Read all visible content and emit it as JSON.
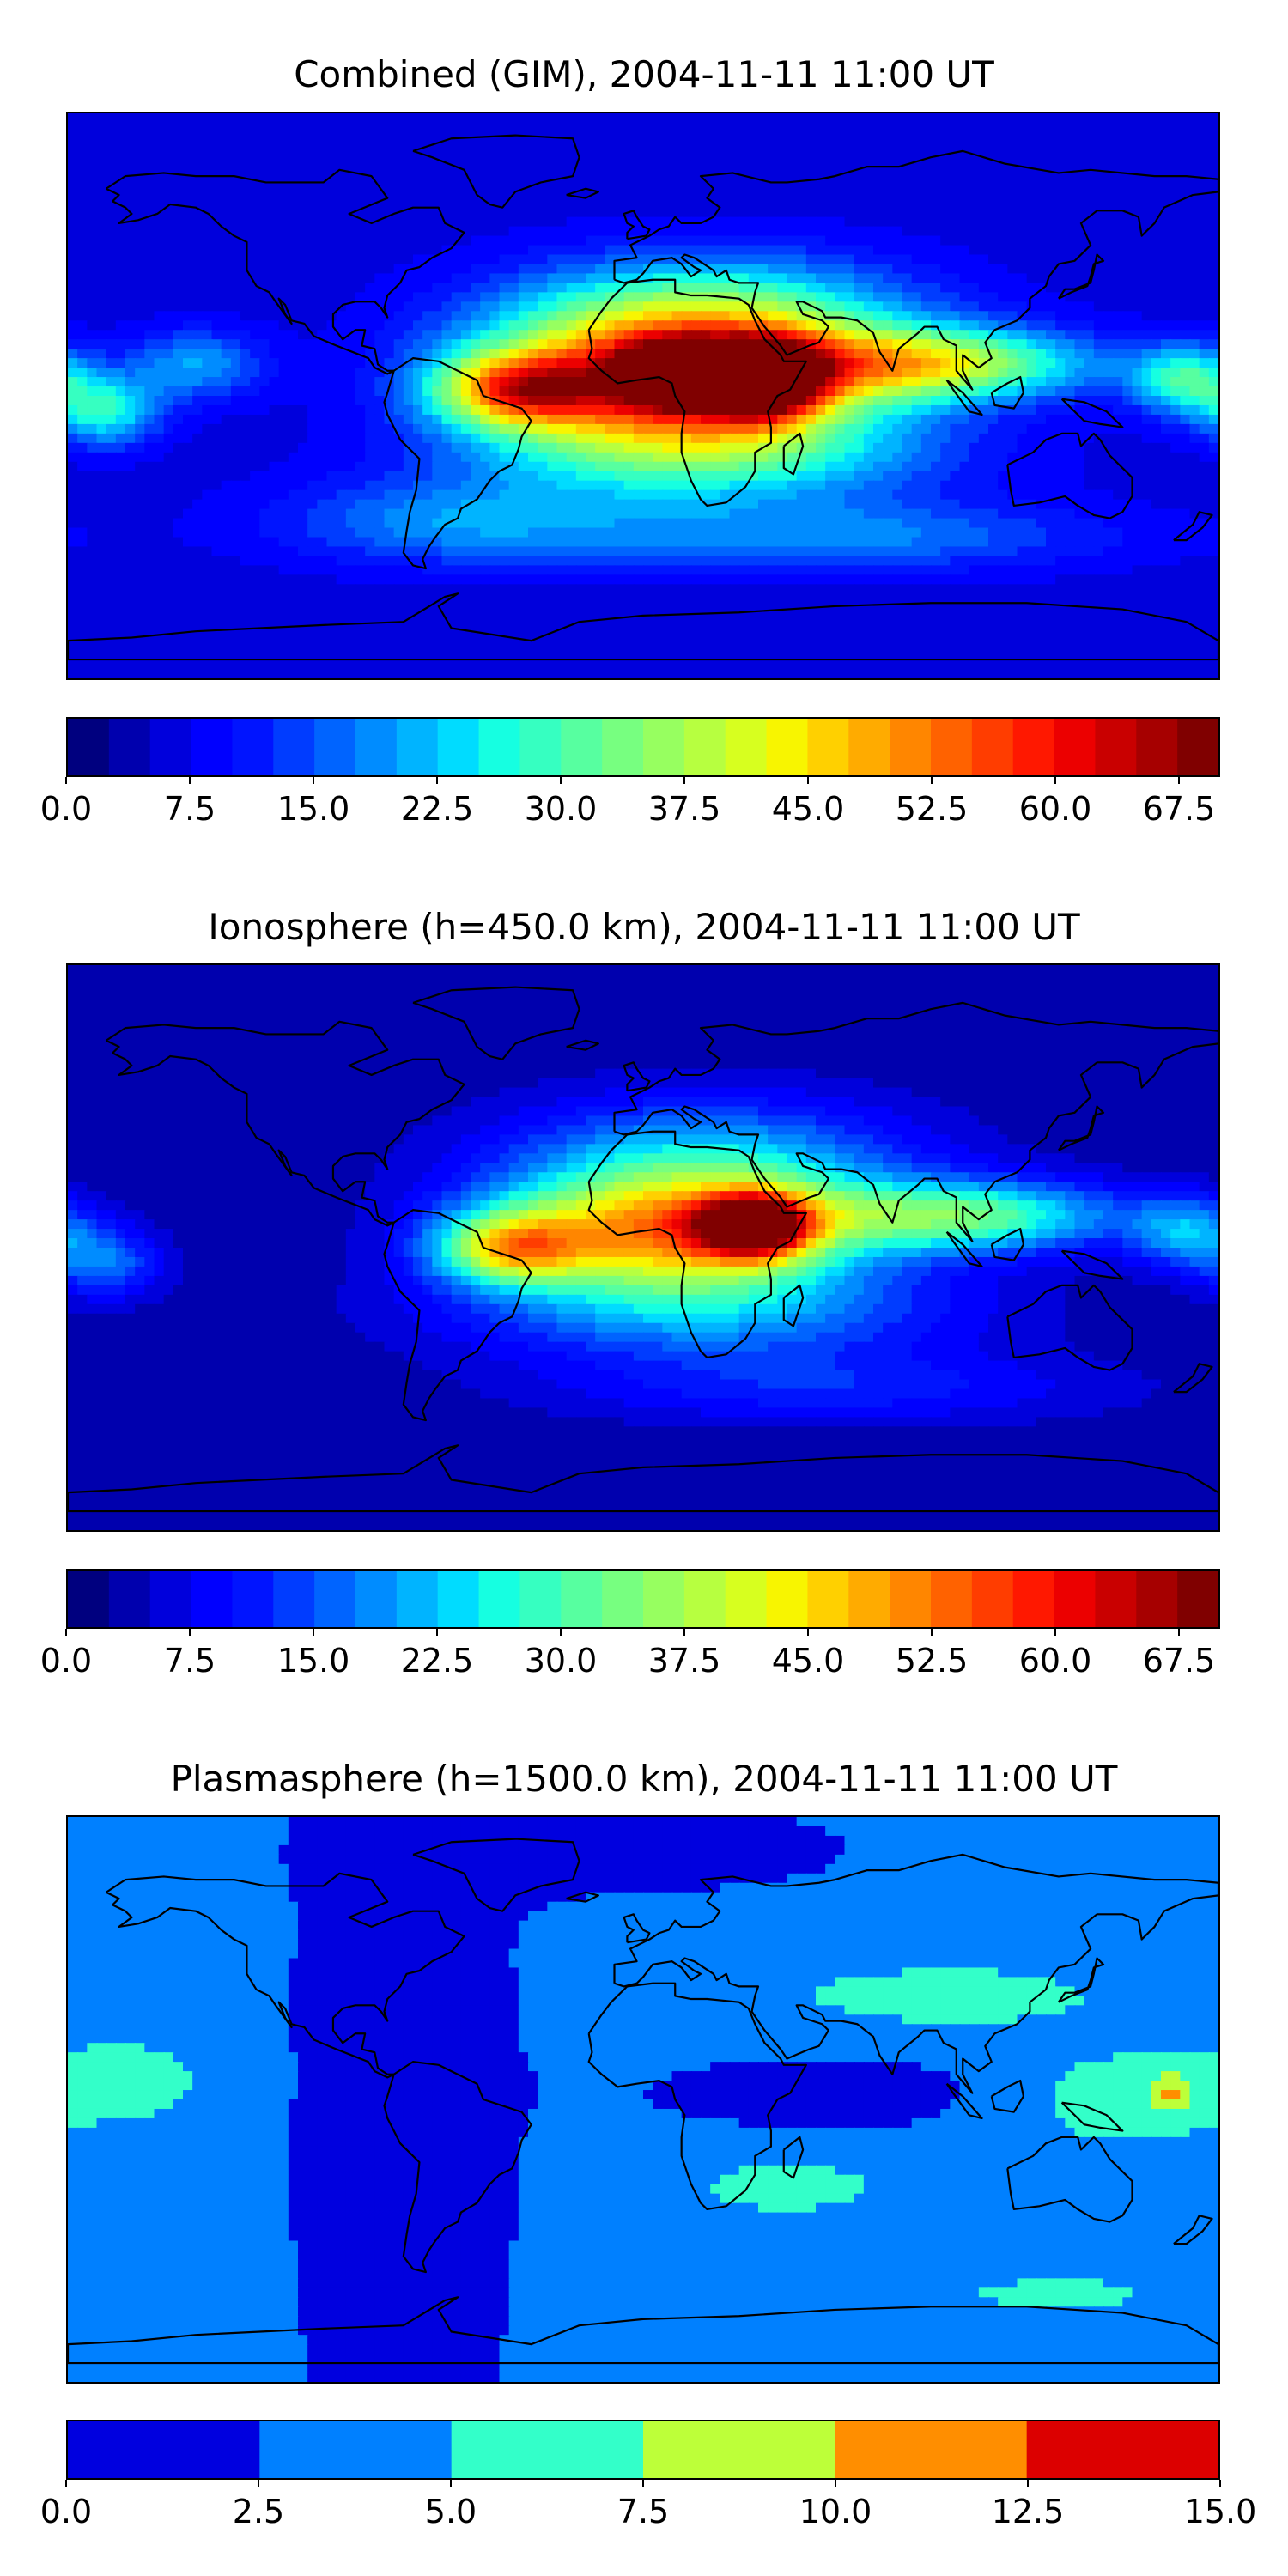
{
  "chart_data": [
    {
      "type": "heatmap",
      "title": "Combined (GIM), 2004-11-11 11:00 UT",
      "colorbar": {
        "range": [
          0.0,
          70.0
        ],
        "levels": [
          0.0,
          2.5,
          5.0,
          7.5,
          10.0,
          12.5,
          15.0,
          17.5,
          20.0,
          22.5,
          25.0,
          27.5,
          30.0,
          32.5,
          35.0,
          37.5,
          40.0,
          42.5,
          45.0,
          47.5,
          50.0,
          52.5,
          55.0,
          57.5,
          60.0,
          62.5,
          65.0,
          67.5,
          70.0
        ],
        "tick_labels": [
          "0.0",
          "7.5",
          "15.0",
          "22.5",
          "30.0",
          "37.5",
          "45.0",
          "52.5",
          "60.0",
          "67.5"
        ],
        "tick_values": [
          0.0,
          7.5,
          15.0,
          22.5,
          30.0,
          37.5,
          45.0,
          52.5,
          60.0,
          67.5
        ]
      },
      "field": {
        "background": 6.0,
        "features": [
          {
            "lon": 8,
            "lat": 5,
            "peak": 48,
            "spread_lon": 40,
            "spread_lat": 14
          },
          {
            "lon": 38,
            "lat": 5,
            "peak": 50,
            "spread_lon": 12,
            "spread_lat": 8
          },
          {
            "lon": 10,
            "lat": 7,
            "peak": 52,
            "spread_lon": 10,
            "spread_lat": 6
          },
          {
            "lon": -40,
            "lat": 2,
            "peak": 32,
            "spread_lon": 18,
            "spread_lat": 8
          },
          {
            "lon": 90,
            "lat": 10,
            "peak": 32,
            "spread_lon": 35,
            "spread_lat": 8
          },
          {
            "lon": 20,
            "lat": 25,
            "peak": 25,
            "spread_lon": 45,
            "spread_lat": 14
          },
          {
            "lon": 20,
            "lat": -18,
            "peak": 22,
            "spread_lon": 50,
            "spread_lat": 12
          },
          {
            "lon": -168,
            "lat": -5,
            "peak": 20,
            "spread_lon": 12,
            "spread_lat": 8
          },
          {
            "lon": 170,
            "lat": 5,
            "peak": 22,
            "spread_lon": 12,
            "spread_lat": 8
          },
          {
            "lon": -140,
            "lat": 10,
            "peak": 14,
            "spread_lon": 15,
            "spread_lat": 8
          },
          {
            "lon": 60,
            "lat": -45,
            "peak": 12,
            "spread_lon": 60,
            "spread_lat": 8
          },
          {
            "lon": -60,
            "lat": -40,
            "peak": 12,
            "spread_lon": 40,
            "spread_lat": 10
          }
        ]
      }
    },
    {
      "type": "heatmap",
      "title": "Ionosphere  (h=450.0 km), 2004-11-11 11:00 UT",
      "colorbar": {
        "range": [
          0.0,
          70.0
        ],
        "levels": [
          0.0,
          2.5,
          5.0,
          7.5,
          10.0,
          12.5,
          15.0,
          17.5,
          20.0,
          22.5,
          25.0,
          27.5,
          30.0,
          32.5,
          35.0,
          37.5,
          40.0,
          42.5,
          45.0,
          47.5,
          50.0,
          52.5,
          55.0,
          57.5,
          60.0,
          62.5,
          65.0,
          67.5,
          70.0
        ],
        "tick_labels": [
          "0.0",
          "7.5",
          "15.0",
          "22.5",
          "30.0",
          "37.5",
          "45.0",
          "52.5",
          "60.0",
          "67.5"
        ],
        "tick_values": [
          0.0,
          7.5,
          15.0,
          22.5,
          30.0,
          37.5,
          45.0,
          52.5,
          60.0,
          67.5
        ]
      },
      "field": {
        "background": 3.0,
        "features": [
          {
            "lon": 8,
            "lat": 5,
            "peak": 44,
            "spread_lon": 38,
            "spread_lat": 13
          },
          {
            "lon": 35,
            "lat": 7,
            "peak": 46,
            "spread_lon": 12,
            "spread_lat": 7
          },
          {
            "lon": -42,
            "lat": 0,
            "peak": 30,
            "spread_lon": 16,
            "spread_lat": 8
          },
          {
            "lon": 100,
            "lat": 10,
            "peak": 28,
            "spread_lon": 35,
            "spread_lat": 8
          },
          {
            "lon": 20,
            "lat": 28,
            "peak": 18,
            "spread_lon": 45,
            "spread_lat": 14
          },
          {
            "lon": 20,
            "lat": -20,
            "peak": 16,
            "spread_lon": 55,
            "spread_lat": 12
          },
          {
            "lon": -168,
            "lat": -5,
            "peak": 14,
            "spread_lon": 12,
            "spread_lat": 8
          },
          {
            "lon": 170,
            "lat": 5,
            "peak": 16,
            "spread_lon": 12,
            "spread_lat": 8
          },
          {
            "lon": 60,
            "lat": -45,
            "peak": 8,
            "spread_lon": 60,
            "spread_lat": 8
          }
        ]
      }
    },
    {
      "type": "heatmap",
      "title": "Plasmasphere (h=1500.0 km), 2004-11-11 11:00 UT",
      "colorbar": {
        "range": [
          0.0,
          15.0
        ],
        "levels": [
          0.0,
          2.5,
          5.0,
          7.5,
          10.0,
          12.5,
          15.0
        ],
        "tick_labels": [
          "0.0",
          "2.5",
          "5.0",
          "7.5",
          "10.0",
          "12.5",
          "15.0"
        ],
        "tick_values": [
          0.0,
          2.5,
          5.0,
          7.5,
          10.0,
          12.5,
          15.0
        ]
      },
      "field": {
        "background": 3.2,
        "features": [
          {
            "lon": -75,
            "lat": 0,
            "peak": -1.6,
            "spread_lon": 28,
            "spread_lat": 120
          },
          {
            "lon": -5,
            "lat": 80,
            "peak": -1.8,
            "spread_lon": 50,
            "spread_lat": 10
          },
          {
            "lon": 60,
            "lat": 2,
            "peak": -1.6,
            "spread_lon": 45,
            "spread_lat": 9
          },
          {
            "lon": -160,
            "lat": 6,
            "peak": 3.0,
            "spread_lon": 18,
            "spread_lat": 10
          },
          {
            "lon": 95,
            "lat": 33,
            "peak": 3.0,
            "spread_lon": 40,
            "spread_lat": 8
          },
          {
            "lon": 150,
            "lat": 0,
            "peak": 3.4,
            "spread_lon": 25,
            "spread_lat": 12
          },
          {
            "lon": 165,
            "lat": 2,
            "peak": 4.6,
            "spread_lon": 4,
            "spread_lat": 4
          },
          {
            "lon": 45,
            "lat": -28,
            "peak": 3.0,
            "spread_lon": 24,
            "spread_lat": 7
          },
          {
            "lon": 130,
            "lat": -62,
            "peak": 2.6,
            "spread_lon": 28,
            "spread_lat": 5
          },
          {
            "lon": 150,
            "lat": 60,
            "peak": 1.2,
            "spread_lon": 25,
            "spread_lat": 8
          }
        ]
      }
    }
  ],
  "colors": {
    "palette_fine": [
      "#00007f",
      "#0000ae",
      "#0000dc",
      "#0000ff",
      "#0014ff",
      "#003cff",
      "#0064ff",
      "#008cff",
      "#00b4ff",
      "#00dcff",
      "#16ffe1",
      "#36ffc1",
      "#57ffa0",
      "#77ff80",
      "#97ff60",
      "#b7ff40",
      "#d7ff1f",
      "#f8f500",
      "#ffd000",
      "#ffab00",
      "#ff8600",
      "#ff6200",
      "#ff3d00",
      "#ff1800",
      "#ec0000",
      "#c90000",
      "#a60000",
      "#800000"
    ],
    "palette_coarse": [
      "#0000df",
      "#0080ff",
      "#33ffc9",
      "#bdff39",
      "#ff8e00",
      "#dc0000"
    ],
    "coastline": "#000000"
  }
}
